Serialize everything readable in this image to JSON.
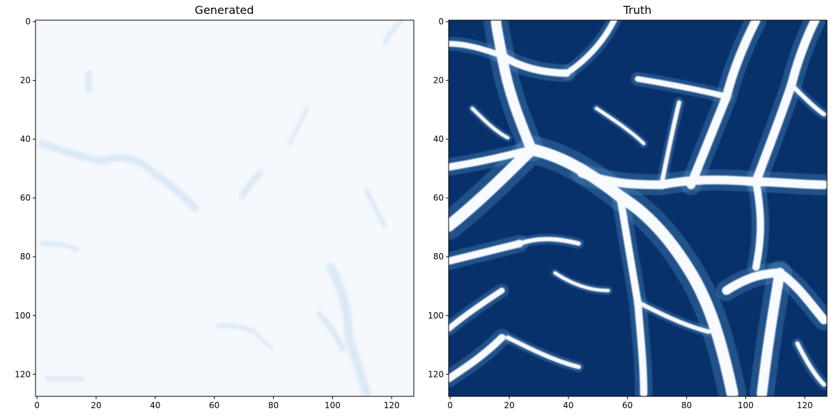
{
  "chart_data": [
    {
      "type": "heatmap",
      "title": "Generated",
      "colormap": "Blues",
      "xlim": [
        0,
        127
      ],
      "ylim": [
        127,
        0
      ],
      "xticks": [
        0,
        20,
        40,
        60,
        80,
        100,
        120
      ],
      "yticks": [
        0,
        20,
        40,
        60,
        80,
        100,
        120
      ],
      "xtick_labels": [
        "0",
        "20",
        "40",
        "60",
        "80",
        "100",
        "120"
      ],
      "ytick_labels": [
        "0",
        "20",
        "40",
        "60",
        "80",
        "100",
        "120"
      ],
      "background_color": "#f5f9fe",
      "filament_color": "#dbe8f5"
    },
    {
      "type": "heatmap",
      "title": "Truth",
      "colormap": "Blues",
      "xlim": [
        0,
        127
      ],
      "ylim": [
        127,
        0
      ],
      "xticks": [
        0,
        20,
        40,
        60,
        80,
        100,
        120
      ],
      "yticks": [
        0,
        20,
        40,
        60,
        80,
        100,
        120
      ],
      "xtick_labels": [
        "0",
        "20",
        "40",
        "60",
        "80",
        "100",
        "120"
      ],
      "ytick_labels": [
        "0",
        "20",
        "40",
        "60",
        "80",
        "100",
        "120"
      ],
      "background_color": "#08306b",
      "filament_color": "#f7fbff"
    }
  ]
}
